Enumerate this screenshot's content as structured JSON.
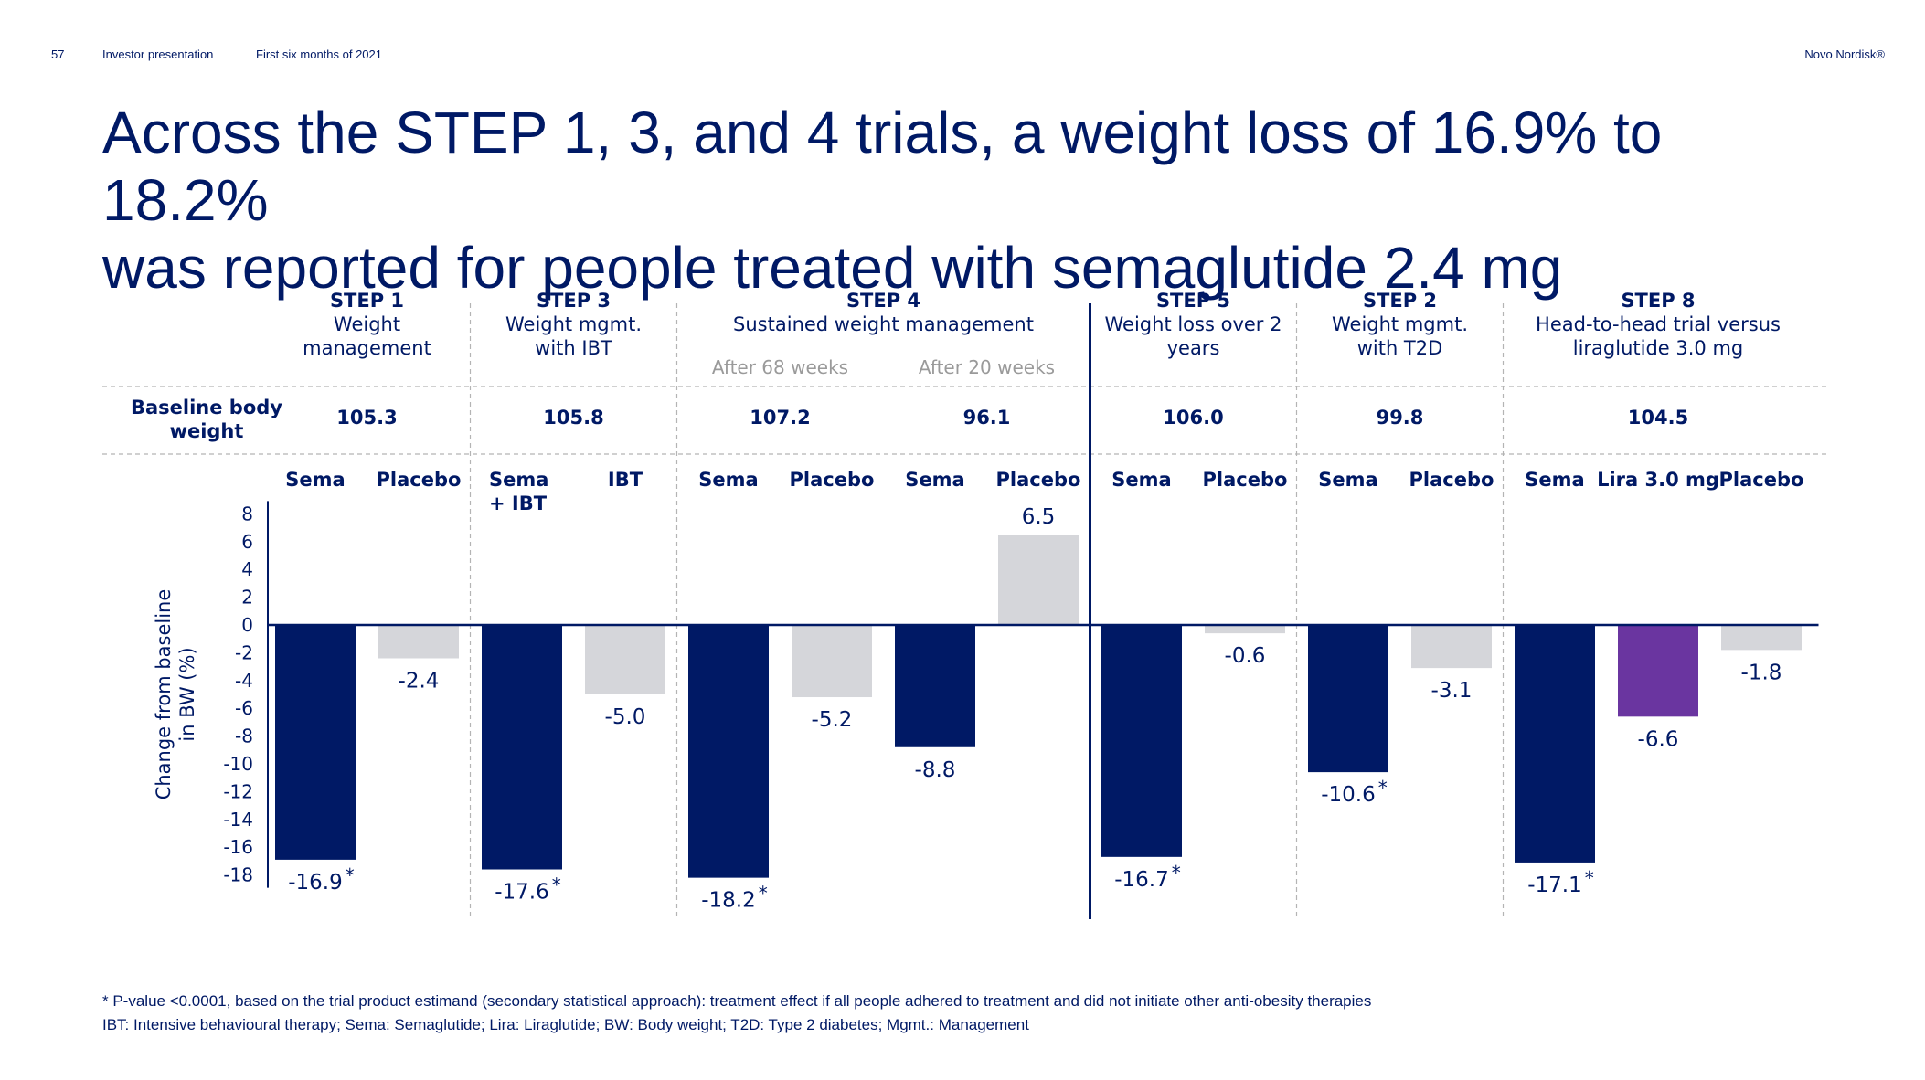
{
  "header": {
    "page_number": "57",
    "doc_title": "Investor presentation",
    "period": "First six months of 2021",
    "brand": "Novo Nordisk®"
  },
  "title": {
    "line1": "Across the STEP 1, 3, and 4 trials, a weight loss of 16.9% to 18.2%",
    "line2": "was reported for people treated with semaglutide 2.4 mg"
  },
  "colors": {
    "sema": "#001965",
    "placebo": "#d5d6da",
    "lira": "#6a35a0",
    "text": "#001965",
    "muted": "#9a9a9a",
    "divider": "#b4b4b4"
  },
  "chart_data": {
    "type": "bar",
    "ylabel": "Change from baseline in BW (%)",
    "ylabel_lines": [
      "Change from baseline",
      "in BW (%)"
    ],
    "ylim": [
      -18,
      8
    ],
    "yticks": [
      8,
      6,
      4,
      2,
      0,
      -2,
      -4,
      -6,
      -8,
      -10,
      -12,
      -14,
      -16,
      -18
    ],
    "baseline_label": [
      "Baseline body",
      "weight"
    ],
    "groups": [
      {
        "trial": "STEP 1",
        "subtitle": [
          "Weight",
          "management"
        ],
        "baseline_weights": [
          "105.3"
        ],
        "bars": [
          {
            "label": [
              "Sema"
            ],
            "value": -16.9,
            "display": "-16.9",
            "star": true,
            "color": "sema"
          },
          {
            "label": [
              "Placebo"
            ],
            "value": -2.4,
            "display": "-2.4",
            "star": false,
            "color": "placebo"
          }
        ]
      },
      {
        "trial": "STEP 3",
        "subtitle": [
          "Weight mgmt.",
          "with IBT"
        ],
        "baseline_weights": [
          "105.8"
        ],
        "bars": [
          {
            "label": [
              "Sema",
              "+ IBT"
            ],
            "value": -17.6,
            "display": "-17.6",
            "star": true,
            "color": "sema"
          },
          {
            "label": [
              "IBT"
            ],
            "value": -5.0,
            "display": "-5.0",
            "star": false,
            "color": "placebo"
          }
        ]
      },
      {
        "trial": "STEP 4",
        "subtitle": [
          "Sustained weight management"
        ],
        "periods": [
          "After 68 weeks",
          "After 20 weeks"
        ],
        "baseline_weights": [
          "107.2",
          "96.1"
        ],
        "bars": [
          {
            "label": [
              "Sema"
            ],
            "value": -18.2,
            "display": "-18.2",
            "star": true,
            "color": "sema"
          },
          {
            "label": [
              "Placebo"
            ],
            "value": -5.2,
            "display": "-5.2",
            "star": false,
            "color": "placebo"
          },
          {
            "label": [
              "Sema"
            ],
            "value": -8.8,
            "display": "-8.8",
            "star": false,
            "color": "sema"
          },
          {
            "label": [
              "Placebo"
            ],
            "value": 6.5,
            "display": "6.5",
            "star": false,
            "color": "placebo"
          }
        ]
      },
      {
        "trial": "STEP 5",
        "subtitle": [
          "Weight loss over 2",
          "years"
        ],
        "baseline_weights": [
          "106.0"
        ],
        "bars": [
          {
            "label": [
              "Sema"
            ],
            "value": -16.7,
            "display": "-16.7",
            "star": true,
            "color": "sema"
          },
          {
            "label": [
              "Placebo"
            ],
            "value": -0.6,
            "display": "-0.6",
            "star": false,
            "color": "placebo"
          }
        ]
      },
      {
        "trial": "STEP 2",
        "subtitle": [
          "Weight mgmt.",
          "with T2D"
        ],
        "baseline_weights": [
          "99.8"
        ],
        "bars": [
          {
            "label": [
              "Sema"
            ],
            "value": -10.6,
            "display": "-10.6",
            "star": true,
            "color": "sema"
          },
          {
            "label": [
              "Placebo"
            ],
            "value": -3.1,
            "display": "-3.1",
            "star": false,
            "color": "placebo"
          }
        ]
      },
      {
        "trial": "STEP 8",
        "subtitle": [
          "Head-to-head trial versus",
          "liraglutide 3.0 mg"
        ],
        "baseline_weights": [
          "104.5"
        ],
        "bars": [
          {
            "label": [
              "Sema"
            ],
            "value": -17.1,
            "display": "-17.1",
            "star": true,
            "color": "sema"
          },
          {
            "label": [
              "Lira 3.0 mg"
            ],
            "value": -6.6,
            "display": "-6.6",
            "star": false,
            "color": "lira"
          },
          {
            "label": [
              "Placebo"
            ],
            "value": -1.8,
            "display": "-1.8",
            "star": false,
            "color": "placebo"
          }
        ]
      }
    ]
  },
  "footnotes": {
    "line1": "* P-value <0.0001, based on the trial product estimand (secondary statistical approach): treatment effect if all people adhered to treatment and did not initiate other anti-obesity therapies",
    "line2": "IBT: Intensive behavioural therapy; Sema: Semaglutide; Lira: Liraglutide; BW: Body weight; T2D: Type 2 diabetes; Mgmt.: Management"
  }
}
